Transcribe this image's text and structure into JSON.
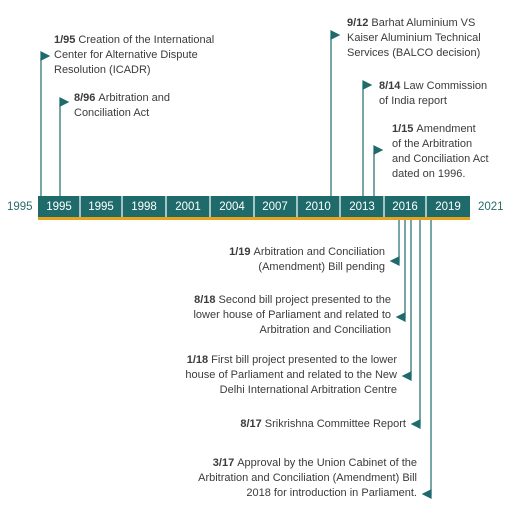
{
  "colors": {
    "teal": "#1f6b6b",
    "gold": "#e8a31c",
    "text": "#3b3b3b",
    "axis_text": "#2c6b6b"
  },
  "axis": {
    "start_label": "1995",
    "end_label": "2021",
    "segments": [
      "1995",
      "1995",
      "1998",
      "2001",
      "2004",
      "2007",
      "2010",
      "2013",
      "2016",
      "2019"
    ]
  },
  "events_above": [
    {
      "date": "1/95",
      "text_lines": [
        "Creation of the International",
        "Center for Alternative Dispute",
        "Resolution (ICADR)"
      ]
    },
    {
      "date": "8/96",
      "text_lines": [
        "Arbitration and",
        "Conciliation Act"
      ]
    },
    {
      "date": "9/12",
      "text_lines": [
        "Barhat Aluminium VS",
        "Kaiser Aluminium Technical",
        "Services (BALCO decision)"
      ]
    },
    {
      "date": "8/14",
      "text_lines": [
        "Law Commission",
        "of India report"
      ]
    },
    {
      "date": "1/15",
      "text_lines": [
        "Amendment",
        "of the Arbitration",
        "and Conciliation Act",
        "dated on 1996."
      ]
    }
  ],
  "events_below": [
    {
      "date": "1/19",
      "text_lines": [
        "Arbitration and Conciliation",
        "(Amendment) Bill pending"
      ]
    },
    {
      "date": "8/18",
      "text_lines": [
        "Second bill project presented to the",
        "lower house of Parliament and related to",
        "Arbitration and Conciliation"
      ]
    },
    {
      "date": "1/18",
      "text_lines": [
        "First bill project presented to the lower",
        "house of Parliament and related to the New",
        "Delhi International Arbitration Centre"
      ]
    },
    {
      "date": "8/17",
      "text_lines": [
        "Srikrishna Committee Report"
      ]
    },
    {
      "date": "3/17",
      "text_lines": [
        "Approval by the Union Cabinet of the",
        "Arbitration and Conciliation (Amendment) Bill",
        "2018 for introduction in Parliament."
      ]
    }
  ]
}
